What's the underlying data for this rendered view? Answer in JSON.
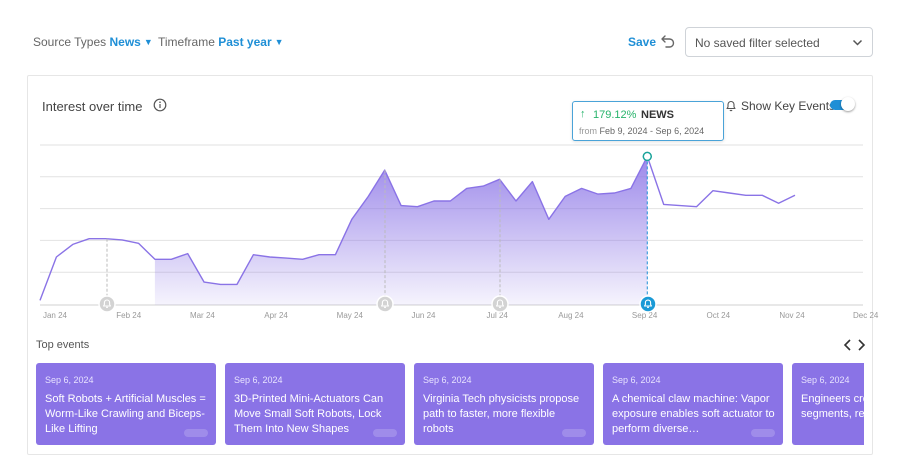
{
  "filters": {
    "source_types_label": "Source Types",
    "source_types_value": "News",
    "timeframe_label": "Timeframe",
    "timeframe_value": "Past year"
  },
  "toolbar": {
    "save_label": "Save",
    "saved_filter_placeholder": "No saved filter selected"
  },
  "card": {
    "title": "Interest over time",
    "show_key_events_label": "Show Key Events",
    "key_events_enabled": true
  },
  "tooltip": {
    "change": "179.12%",
    "source": "NEWS",
    "from_label": "from",
    "range": "Feb 9, 2024 - Sep 6, 2024"
  },
  "colors": {
    "accent": "#1f8fd6",
    "series": "#8a73e6",
    "positive": "#27b36b",
    "event_card": "#8a73e6"
  },
  "chart_data": {
    "type": "area",
    "x_ticks": [
      "Jan 24",
      "Feb 24",
      "Mar 24",
      "Apr 24",
      "May 24",
      "Jun 24",
      "Jul 24",
      "Aug 24",
      "Sep 24",
      "Oct 24",
      "Nov 24",
      "Dec 24"
    ],
    "grid": true,
    "series": [
      {
        "values": [
          4,
          42,
          53,
          58,
          58,
          57,
          54,
          40,
          40,
          45,
          20,
          18,
          18,
          44,
          42,
          41,
          40,
          44,
          44,
          75,
          95,
          118,
          87,
          86,
          91,
          91,
          102,
          104,
          110,
          91,
          108,
          75,
          95,
          102,
          97,
          98,
          102,
          130,
          88,
          87,
          86,
          100,
          98,
          96,
          96,
          89,
          96
        ]
      }
    ],
    "highlight_index": 37,
    "ylim": [
      0,
      140
    ],
    "key_events_at_months": [
      1,
      5,
      6.5,
      8
    ]
  },
  "top_events": {
    "title": "Top events",
    "items": [
      {
        "date": "Sep 6, 2024",
        "title": "Soft Robots + Artificial Muscles = Worm-Like Crawling and Biceps-Like Lifting"
      },
      {
        "date": "Sep 6, 2024",
        "title": "3D-Printed Mini-Actuators Can Move Small Soft Robots, Lock Them Into New Shapes"
      },
      {
        "date": "Sep 6, 2024",
        "title": "Virginia Tech physicists propose path to faster, more flexible robots"
      },
      {
        "date": "Sep 6, 2024",
        "title": "A chemical claw machine: Vapor exposure enables soft actuator to perform diverse…"
      },
      {
        "date": "Sep 6, 2024",
        "title": "Engineers create shaped robot segments, re…"
      }
    ]
  }
}
